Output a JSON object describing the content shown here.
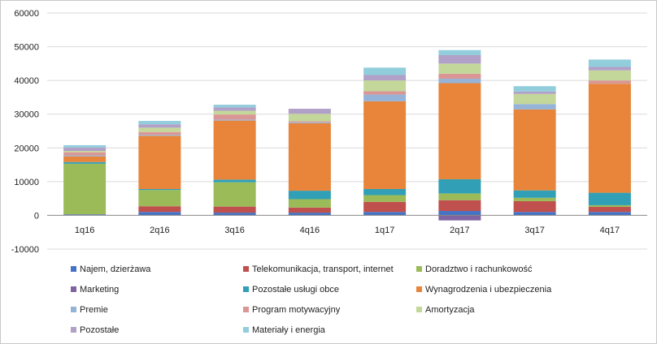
{
  "chart_data": {
    "type": "stacked-bar",
    "title": "",
    "xlabel": "",
    "ylabel": "",
    "ylim": [
      -10000,
      60000
    ],
    "yticks": [
      -10000,
      0,
      10000,
      20000,
      30000,
      40000,
      50000,
      60000
    ],
    "grid": true,
    "legend_position": "bottom",
    "categories": [
      "1q16",
      "2q16",
      "3q16",
      "4q16",
      "1q17",
      "2q17",
      "3q17",
      "4q17"
    ],
    "series": [
      {
        "name": "Najem, dzierżawa",
        "color": "#4472C4",
        "values": [
          300,
          1000,
          800,
          800,
          1000,
          1300,
          1000,
          1000
        ]
      },
      {
        "name": "Telekomunikacja, transport, internet",
        "color": "#C0504D",
        "values": [
          0,
          1700,
          1800,
          1500,
          3000,
          3200,
          3200,
          1500
        ]
      },
      {
        "name": "Doradztwo i rachunkowość",
        "color": "#9BBB59",
        "values": [
          15000,
          4800,
          7200,
          2500,
          2000,
          2000,
          1000,
          500
        ]
      },
      {
        "name": "Marketing",
        "color": "#8064A2",
        "values": [
          0,
          0,
          0,
          0,
          0,
          -1500,
          0,
          0
        ]
      },
      {
        "name": "Pozostałe usługi obce",
        "color": "#31A0B6",
        "values": [
          500,
          300,
          800,
          2500,
          1800,
          4200,
          2200,
          3700
        ]
      },
      {
        "name": "Wynagrodzenia i ubezpieczenia",
        "color": "#E8853A",
        "values": [
          1700,
          15800,
          17500,
          20000,
          26000,
          28500,
          24000,
          32300
        ]
      },
      {
        "name": "Premie",
        "color": "#95B3D7",
        "values": [
          300,
          300,
          300,
          300,
          2000,
          1300,
          1600,
          0
        ]
      },
      {
        "name": "Program motywacyjny",
        "color": "#DA9694",
        "values": [
          900,
          800,
          1500,
          300,
          1000,
          1500,
          0,
          1000
        ]
      },
      {
        "name": "Amortyzacja",
        "color": "#C4D79B",
        "values": [
          400,
          1300,
          1100,
          2200,
          3200,
          3000,
          3000,
          3000
        ]
      },
      {
        "name": "Pozostałe",
        "color": "#B1A0C7",
        "values": [
          1000,
          1000,
          1000,
          1500,
          1600,
          2500,
          700,
          1000
        ]
      },
      {
        "name": "Materiały i energia",
        "color": "#92CDDC",
        "values": [
          700,
          1000,
          800,
          0,
          2200,
          1500,
          1600,
          2200
        ]
      }
    ]
  }
}
